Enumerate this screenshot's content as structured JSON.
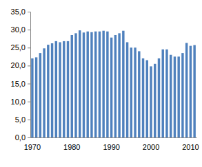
{
  "chart_data": {
    "type": "bar",
    "categories": [
      "1970",
      null,
      null,
      null,
      null,
      null,
      null,
      null,
      null,
      null,
      "1980",
      null,
      null,
      null,
      null,
      null,
      null,
      null,
      null,
      null,
      "1990",
      null,
      null,
      null,
      null,
      null,
      null,
      null,
      null,
      null,
      "2000",
      null,
      null,
      null,
      null,
      null,
      null,
      null,
      null,
      null,
      "2010",
      null
    ],
    "values": [
      22.0,
      22.3,
      23.5,
      24.8,
      25.8,
      26.2,
      26.8,
      26.5,
      26.8,
      26.8,
      28.5,
      29.0,
      29.8,
      29.2,
      29.5,
      29.3,
      29.5,
      29.5,
      29.7,
      29.5,
      27.8,
      28.5,
      29.0,
      29.7,
      26.5,
      25.0,
      25.0,
      24.0,
      22.0,
      21.5,
      19.8,
      20.5,
      22.0,
      24.5,
      24.5,
      23.0,
      22.5,
      22.5,
      23.5,
      26.3,
      25.5,
      25.7
    ],
    "color": "#4f81bd",
    "ylim": [
      0,
      35
    ],
    "yticks": [
      {
        "value": 0,
        "label": "0,0"
      },
      {
        "value": 5,
        "label": "5,0"
      },
      {
        "value": 10,
        "label": "10,0"
      },
      {
        "value": 15,
        "label": "15,0"
      },
      {
        "value": 20,
        "label": "20,0"
      },
      {
        "value": 25,
        "label": "25,0"
      },
      {
        "value": 30,
        "label": "30,0"
      },
      {
        "value": 35,
        "label": "35,0"
      }
    ],
    "grid": false
  }
}
